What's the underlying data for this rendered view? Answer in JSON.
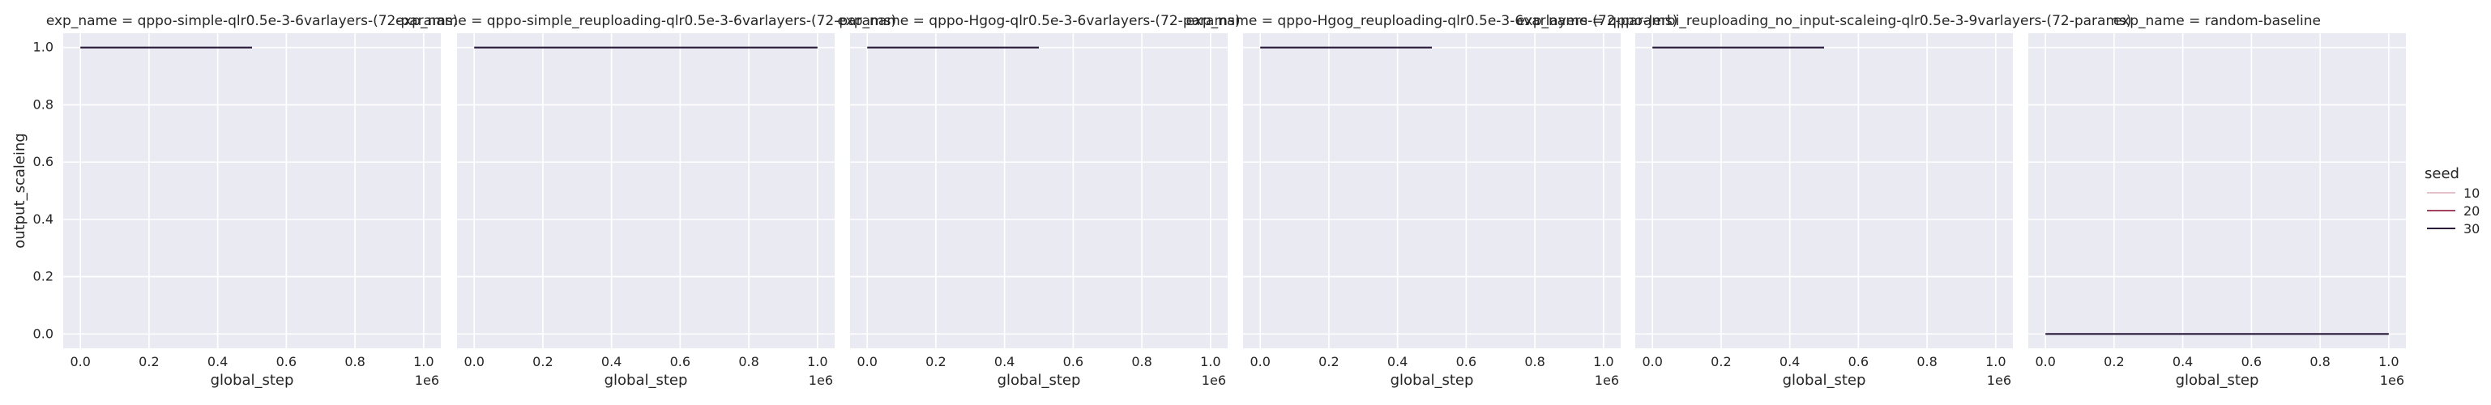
{
  "chart_data": {
    "type": "line",
    "shared": {
      "xlabel": "global_step",
      "ylabel": "output_scaleing",
      "x_offset_label": "1e6",
      "xlim": [
        -0.05,
        1.05
      ],
      "ylim": [
        -0.05,
        1.05
      ],
      "x_ticks": [
        0.0,
        0.2,
        0.4,
        0.6,
        0.8,
        1.0
      ],
      "x_tick_labels": [
        "0.0",
        "0.2",
        "0.4",
        "0.6",
        "0.8",
        "1.0"
      ],
      "y_ticks": [
        0.0,
        0.2,
        0.4,
        0.6,
        0.8,
        1.0
      ],
      "y_tick_labels": [
        "0.0",
        "0.2",
        "0.4",
        "0.6",
        "0.8",
        "1.0"
      ],
      "grid": true,
      "background": "#eaeaf2"
    },
    "legend": {
      "title": "seed",
      "placement": "right",
      "entries": [
        {
          "label": "10",
          "color": "#e6c1c8"
        },
        {
          "label": "20",
          "color": "#a3435f"
        },
        {
          "label": "30",
          "color": "#2a1b3b"
        }
      ]
    },
    "panels": [
      {
        "title": "exp_name = qppo-simple-qlr0.5e-3-6varlayers-(72-params)",
        "series": [
          {
            "name": "30",
            "x": [
              0.0,
              0.5
            ],
            "y": [
              1.0,
              1.0
            ]
          }
        ]
      },
      {
        "title": "exp_name = qppo-simple_reuploading-qlr0.5e-3-6varlayers-(72-params)",
        "series": [
          {
            "name": "30",
            "x": [
              0.0,
              1.0
            ],
            "y": [
              1.0,
              1.0
            ]
          }
        ]
      },
      {
        "title": "exp_name = qppo-Hgog-qlr0.5e-3-6varlayers-(72-params)",
        "series": [
          {
            "name": "30",
            "x": [
              0.0,
              0.5
            ],
            "y": [
              1.0,
              1.0
            ]
          }
        ]
      },
      {
        "title": "exp_name = qppo-Hgog_reuploading-qlr0.5e-3-6varlayers-(72-params)",
        "series": [
          {
            "name": "30",
            "x": [
              0.0,
              0.5
            ],
            "y": [
              1.0,
              1.0
            ]
          }
        ]
      },
      {
        "title": "exp_name = qppo-Jerbi_reuploading_no_input-scaleing-qlr0.5e-3-9varlayers-(72-params)",
        "series": [
          {
            "name": "30",
            "x": [
              0.0,
              0.5
            ],
            "y": [
              1.0,
              1.0
            ]
          }
        ]
      },
      {
        "title": "exp_name = random-baseline",
        "series": [
          {
            "name": "30",
            "x": [
              0.0,
              1.0
            ],
            "y": [
              0.0,
              0.0
            ]
          }
        ]
      }
    ]
  }
}
